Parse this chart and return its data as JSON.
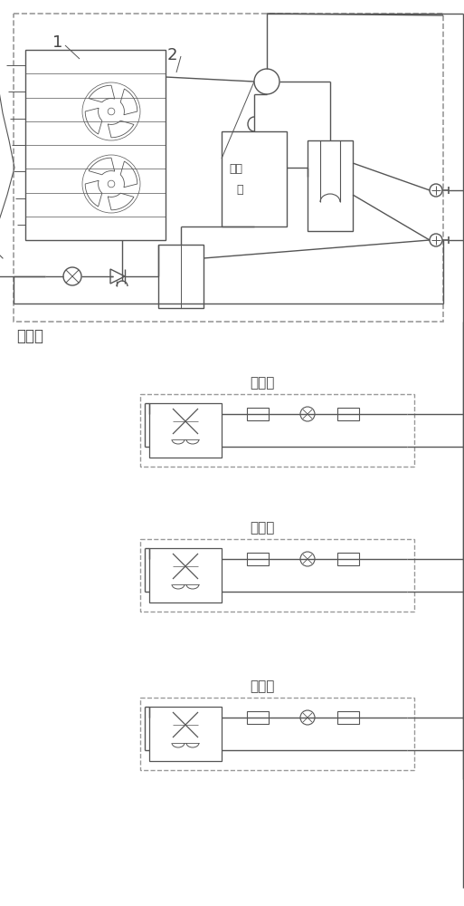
{
  "bg_color": "#ffffff",
  "line_color": "#555555",
  "dash_color": "#999999",
  "text_color": "#444444",
  "outdoor_label": "室外机",
  "indoor_label": "室内机",
  "compressor_label": "压缩\n机",
  "label1": "1",
  "label2": "2",
  "fig_w": 5.13,
  "fig_h": 10.0,
  "dpi": 100
}
